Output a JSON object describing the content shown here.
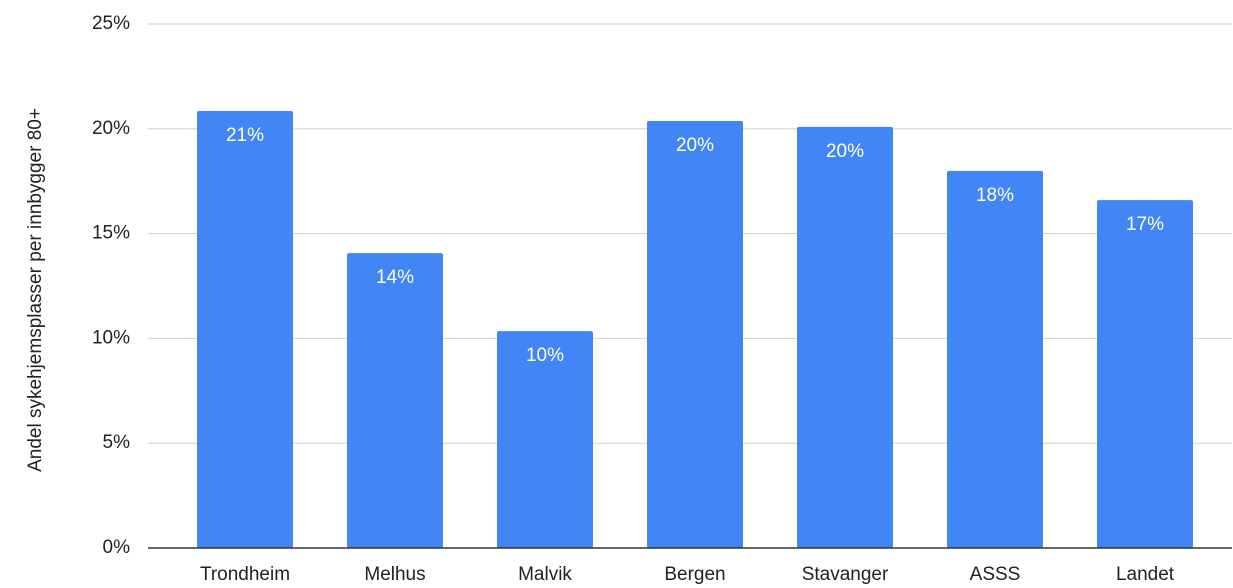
{
  "chart_data": {
    "type": "bar",
    "y_label": "Andel sykehjemsplasser per innbygger 80+",
    "categories": [
      "Trondheim",
      "Melhus",
      "Malvik",
      "Bergen",
      "Stavanger",
      "ASSS",
      "Landet"
    ],
    "values": [
      20.85,
      14.07,
      10.35,
      20.37,
      20.09,
      17.99,
      16.6
    ],
    "value_labels": [
      "21%",
      "14%",
      "10%",
      "20%",
      "20%",
      "18%",
      "17%"
    ],
    "color": "#4285f4",
    "ylim": [
      0,
      25
    ],
    "yticks": [
      {
        "value": 0,
        "label": "0%"
      },
      {
        "value": 5,
        "label": "5%"
      },
      {
        "value": 10,
        "label": "10%"
      },
      {
        "value": 15,
        "label": "15%"
      },
      {
        "value": 20,
        "label": "20%"
      },
      {
        "value": 25,
        "label": "25%"
      }
    ],
    "grid": true
  }
}
